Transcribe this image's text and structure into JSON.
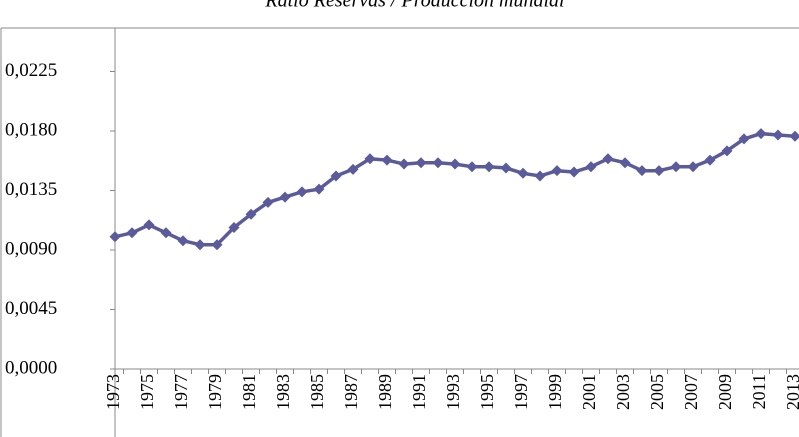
{
  "chart_data": {
    "type": "line",
    "title": "Ratio Reservas / Producción mundial",
    "categories": [
      "1973",
      null,
      "1975",
      null,
      "1977",
      null,
      "1979",
      null,
      "1981",
      null,
      "1983",
      null,
      "1985",
      null,
      "1987",
      null,
      "1989",
      null,
      "1991",
      null,
      "1993",
      null,
      "1995",
      null,
      "1997",
      null,
      "1999",
      null,
      "2001",
      null,
      "2003",
      null,
      "2005",
      null,
      "2007",
      null,
      "2009",
      null,
      "2011",
      null,
      "2013"
    ],
    "values": [
      0.01,
      0.0103,
      0.0109,
      0.0103,
      0.0097,
      0.0094,
      0.0094,
      0.0107,
      0.0117,
      0.0126,
      0.013,
      0.0134,
      0.0136,
      0.0146,
      0.0151,
      0.0159,
      0.0158,
      0.0155,
      0.0156,
      0.0156,
      0.0155,
      0.0153,
      0.0153,
      0.0152,
      0.0148,
      0.0146,
      0.015,
      0.0149,
      0.0153,
      0.0159,
      0.0156,
      0.015,
      0.015,
      0.0153,
      0.0153,
      0.0158,
      0.0165,
      0.0174,
      0.0178,
      0.0177,
      0.0176
    ],
    "color": "#5b5b9b",
    "ylim": [
      0,
      0.027
    ],
    "yticks": [
      {
        "value": 0,
        "label": "0,0000"
      },
      {
        "value": 0.0045,
        "label": "0,0045"
      },
      {
        "value": 0.009,
        "label": "0,0090"
      },
      {
        "value": 0.0135,
        "label": "0,0135"
      },
      {
        "value": 0.018,
        "label": "0,0180"
      },
      {
        "value": 0.0225,
        "label": "0,0225"
      }
    ],
    "grid": false
  }
}
